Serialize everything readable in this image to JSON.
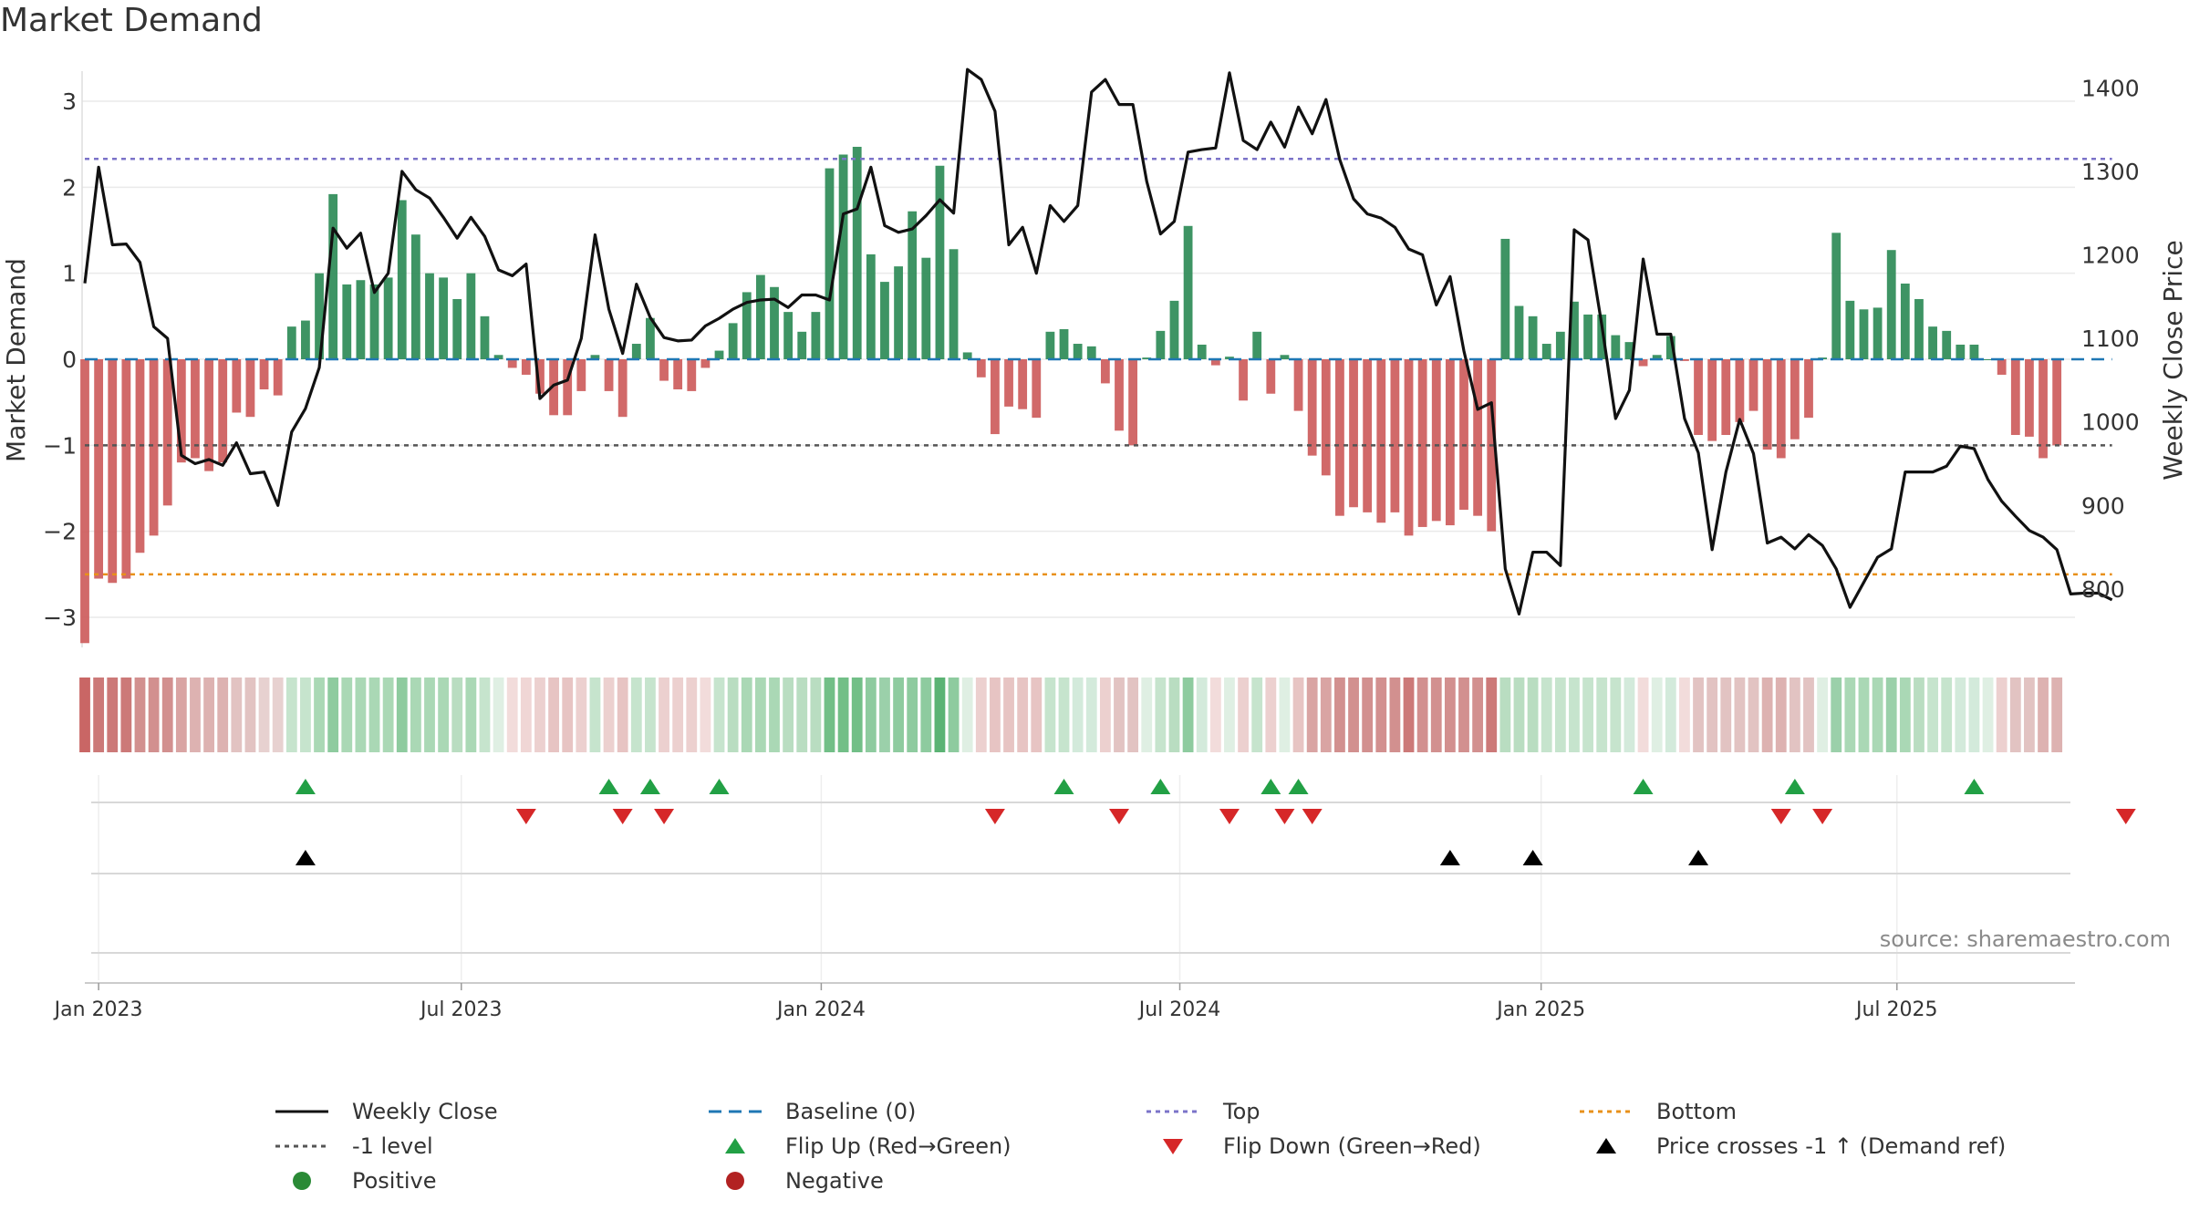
{
  "chart_data": {
    "type": "bar",
    "title": "Market Demand",
    "ylabel_left": "Market Demand",
    "ylabel_right": "Weekly Close Price",
    "ylim_left": [
      -3.35,
      3.35
    ],
    "ylim_right": [
      730,
      1420
    ],
    "yticks_left": [
      3,
      2,
      1,
      0,
      -1,
      -2,
      -3
    ],
    "ytick_labels_left": [
      "3",
      "2",
      "1",
      "0",
      "−1",
      "−2",
      "−3"
    ],
    "yticks_right": [
      1400,
      1300,
      1200,
      1100,
      1000,
      900,
      800
    ],
    "ytick_labels_right": [
      "1400",
      "1300",
      "1200",
      "1100",
      "1000",
      "900",
      "800"
    ],
    "x_start": "2022-12-26",
    "weeks": 146,
    "xticks": [
      {
        "label": "Jan 2023",
        "week": 1
      },
      {
        "label": "Jul 2023",
        "week": 27.3
      },
      {
        "label": "Jan 2024",
        "week": 53.4
      },
      {
        "label": "Jul 2024",
        "week": 79.4
      },
      {
        "label": "Jan 2025",
        "week": 105.6
      },
      {
        "label": "Jul 2025",
        "week": 131.4
      }
    ],
    "reference_lines": {
      "top": 2.33,
      "minus_one": -1,
      "bottom": -2.5,
      "baseline": 0
    },
    "demand": [
      -3.3,
      -2.55,
      -2.6,
      -2.55,
      -2.25,
      -2.05,
      -1.7,
      -1.2,
      -1.15,
      -1.3,
      -1.2,
      -0.62,
      -0.67,
      -0.35,
      -0.42,
      0.38,
      0.45,
      1.0,
      1.92,
      0.87,
      0.92,
      0.87,
      0.95,
      1.85,
      1.45,
      1.0,
      0.95,
      0.7,
      1.0,
      0.5,
      0.05,
      -0.1,
      -0.18,
      -0.4,
      -0.65,
      -0.65,
      -0.37,
      0.05,
      -0.37,
      -0.67,
      0.18,
      0.48,
      -0.25,
      -0.35,
      -0.37,
      -0.1,
      0.1,
      0.42,
      0.78,
      0.98,
      0.84,
      0.55,
      0.32,
      0.55,
      2.22,
      2.38,
      2.47,
      1.22,
      0.9,
      1.08,
      1.72,
      1.18,
      2.25,
      1.28,
      0.08,
      -0.21,
      -0.87,
      -0.55,
      -0.58,
      -0.68,
      0.32,
      0.35,
      0.18,
      0.15,
      -0.28,
      -0.83,
      -1.0,
      0.02,
      0.33,
      0.68,
      1.55,
      0.17,
      -0.07,
      0.03,
      -0.48,
      0.32,
      -0.4,
      0.05,
      -0.6,
      -1.12,
      -1.35,
      -1.82,
      -1.72,
      -1.78,
      -1.9,
      -1.78,
      -2.05,
      -1.95,
      -1.88,
      -1.93,
      -1.75,
      -1.82,
      -2.0,
      1.4,
      0.62,
      0.5,
      0.18,
      0.32,
      0.67,
      0.52,
      0.52,
      0.28,
      0.2,
      -0.08,
      0.05,
      0.27,
      -0.02,
      -0.88,
      -0.95,
      -0.88,
      -0.73,
      -0.6,
      -1.05,
      -1.15,
      -0.93,
      -0.68,
      0.02,
      1.47,
      0.68,
      0.58,
      0.6,
      1.27,
      0.88,
      0.7,
      0.38,
      0.33,
      0.17,
      0.17,
      0.0,
      -0.18,
      -0.88,
      -0.9,
      -1.15,
      -1.0
    ],
    "close": [
      1166,
      1305,
      1212,
      1213,
      1191,
      1114,
      1100,
      960,
      950,
      955,
      948,
      975,
      938,
      940,
      900,
      988,
      1016,
      1065,
      1232,
      1208,
      1226,
      1155,
      1178,
      1300,
      1278,
      1268,
      1245,
      1220,
      1245,
      1222,
      1182,
      1175,
      1189,
      1028,
      1044,
      1050,
      1100,
      1224,
      1135,
      1082,
      1165,
      1125,
      1101,
      1097,
      1098,
      1115,
      1124,
      1135,
      1143,
      1146,
      1147,
      1137,
      1152,
      1152,
      1146,
      1249,
      1255,
      1305,
      1235,
      1227,
      1231,
      1247,
      1266,
      1250,
      1422,
      1410,
      1372,
      1212,
      1233,
      1178,
      1259,
      1240,
      1259,
      1395,
      1410,
      1380,
      1380,
      1288,
      1225,
      1240,
      1323,
      1326,
      1328,
      1418,
      1337,
      1326,
      1359,
      1329,
      1377,
      1345,
      1386,
      1314,
      1267,
      1249,
      1244,
      1233,
      1207,
      1200,
      1140,
      1174,
      1085,
      1015,
      1023,
      824,
      770,
      844,
      844,
      828,
      1230,
      1218,
      1116,
      1004,
      1038,
      1195,
      1105,
      1105,
      1004,
      963,
      847,
      940,
      1003,
      962,
      855,
      862,
      848,
      865,
      852,
      824,
      778,
      808,
      838,
      848,
      940,
      940,
      940,
      947,
      971,
      968,
      931,
      905,
      887,
      870,
      862,
      847,
      794,
      795,
      795,
      787
    ],
    "flip_up_weeks": [
      16,
      38,
      41,
      46,
      71,
      78,
      86,
      88,
      113,
      124,
      137
    ],
    "flip_down_weeks": [
      32,
      39,
      42,
      66,
      75,
      83,
      87,
      89,
      123,
      126,
      148
    ],
    "price_cross_weeks": [
      16,
      99,
      105,
      117
    ],
    "strip_colors": [
      "#c96665",
      "#cc7978",
      "#cc7978",
      "#cc7978",
      "#d2908f",
      "#d2908f",
      "#d2908f",
      "#d9a4a3",
      "#ddb2b1",
      "#ddb2b1",
      "#ddb2b1",
      "#e2c3c2",
      "#e2c3c2",
      "#e7d1d0",
      "#e7d1d0",
      "#c6e4cd",
      "#c6e4cd",
      "#aad8b5",
      "#8ecb9f",
      "#aad8b5",
      "#aad8b5",
      "#aad8b5",
      "#aad8b5",
      "#8ecb9f",
      "#aad8b5",
      "#aad8b5",
      "#aad8b5",
      "#b9ddc1",
      "#aad8b5",
      "#c6e4cd",
      "#dfefe3",
      "#f2dcdb",
      "#f0d6d5",
      "#ecd0cf",
      "#e7c4c3",
      "#e7c4c3",
      "#ecd0cf",
      "#c6e4cd",
      "#ecd0cf",
      "#e7c4c3",
      "#c6e4cd",
      "#c6e4cd",
      "#ecd0cf",
      "#ecd0cf",
      "#ecd0cf",
      "#f2dcdb",
      "#c6e4cd",
      "#b9ddc1",
      "#aad8b5",
      "#aad8b5",
      "#aad8b5",
      "#b9ddc1",
      "#b9ddc1",
      "#b9ddc1",
      "#72bf87",
      "#72bf87",
      "#72bf87",
      "#8ecb9f",
      "#9bd0aa",
      "#8ecb9f",
      "#8ecb9f",
      "#8ecb9f",
      "#5bb374",
      "#8ecb9f",
      "#dfefe3",
      "#ecd0cf",
      "#e7c4c3",
      "#e7c4c3",
      "#e7c4c3",
      "#e7c4c3",
      "#c6e4cd",
      "#c6e4cd",
      "#d3eadb",
      "#d3eadb",
      "#ecd0cf",
      "#e2c3c2",
      "#e2c3c2",
      "#dfefe3",
      "#c6e4cd",
      "#b9ddc1",
      "#8ecb9f",
      "#d3eadb",
      "#f2dcdb",
      "#dfefe3",
      "#ecd0cf",
      "#c6e4cd",
      "#ecd0cf",
      "#dfefe3",
      "#e7c4c3",
      "#d9a4a3",
      "#d9a4a3",
      "#d2908f",
      "#d2908f",
      "#d2908f",
      "#d2908f",
      "#d2908f",
      "#cc7978",
      "#d2908f",
      "#d2908f",
      "#d2908f",
      "#d2908f",
      "#d2908f",
      "#cc7978",
      "#b9ddc1",
      "#b9ddc1",
      "#b9ddc1",
      "#c6e4cd",
      "#c6e4cd",
      "#c6e4cd",
      "#c6e4cd",
      "#c6e4cd",
      "#c6e4cd",
      "#d3eadb",
      "#f2dcdb",
      "#dfefe3",
      "#d3eadb",
      "#f2dcdb",
      "#e2c3c2",
      "#e2c3c2",
      "#e2c3c2",
      "#e2c3c2",
      "#e2c3c2",
      "#ddb2b1",
      "#ddb2b1",
      "#e2c3c2",
      "#e2c3c2",
      "#dfefe3",
      "#9bd0aa",
      "#aad8b5",
      "#aad8b5",
      "#aad8b5",
      "#9bd0aa",
      "#aad8b5",
      "#b9ddc1",
      "#c6e4cd",
      "#c6e4cd",
      "#d3eadb",
      "#d3eadb",
      "#dfefe3",
      "#ecd0cf",
      "#e2c3c2",
      "#e2c3c2",
      "#ddb2b1",
      "#ddb2b1"
    ],
    "colors": {
      "positive_bar": "#2e8b57",
      "negative_bar": "#cd5c5c",
      "close_line": "#111111",
      "baseline": "#1f77b4",
      "top": "#7b73c9",
      "minus_one": "#555555",
      "bottom": "#e8901a",
      "flip_up": "#22a045",
      "flip_down": "#d62728",
      "cross": "#000000"
    },
    "legend": [
      {
        "label": "Weekly Close",
        "symbol": "line-solid",
        "color": "#111111"
      },
      {
        "label": "Baseline (0)",
        "symbol": "line-dash",
        "color": "#1f77b4"
      },
      {
        "label": "Top",
        "symbol": "line-dot",
        "color": "#7b73c9"
      },
      {
        "label": "Bottom",
        "symbol": "line-dot",
        "color": "#e8901a"
      },
      {
        "label": "-1 level",
        "symbol": "line-dot",
        "color": "#555555"
      },
      {
        "label": "Flip Up (Red→Green)",
        "symbol": "triangle-up",
        "color": "#22a045"
      },
      {
        "label": "Flip Down (Green→Red)",
        "symbol": "triangle-down",
        "color": "#d62728"
      },
      {
        "label": "Price crosses -1 ↑ (Demand ref)",
        "symbol": "triangle-up",
        "color": "#000000"
      },
      {
        "label": "Positive",
        "symbol": "circle",
        "color": "#2a8a36"
      },
      {
        "label": "Negative",
        "symbol": "circle",
        "color": "#b22222"
      }
    ]
  },
  "source_note": "source: sharemaestro.com"
}
